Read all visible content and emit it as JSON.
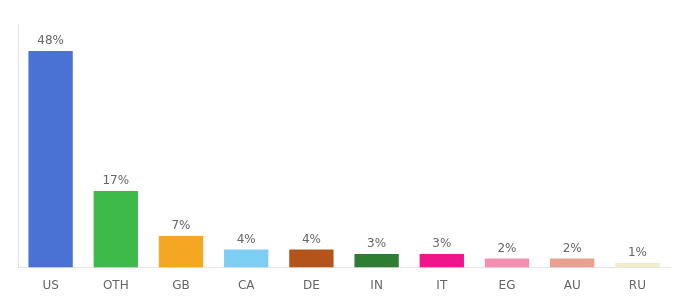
{
  "chart_data": {
    "type": "bar",
    "categories": [
      "US",
      "OTH",
      "GB",
      "CA",
      "DE",
      "IN",
      "IT",
      "EG",
      "AU",
      "RU"
    ],
    "values": [
      48,
      17,
      7,
      4,
      4,
      3,
      3,
      2,
      2,
      1
    ],
    "value_labels": [
      "48%",
      "17%",
      "7%",
      "4%",
      "4%",
      "3%",
      "3%",
      "2%",
      "2%",
      "1%"
    ],
    "colors": [
      "#4a72d4",
      "#3dba4a",
      "#f5a623",
      "#7ecef4",
      "#b5541a",
      "#2e7d32",
      "#f0158a",
      "#f48fb1",
      "#e8a090",
      "#f0eec8"
    ],
    "ylim": [
      0,
      54
    ],
    "data_labels": true,
    "tick_labels": "x",
    "grid": false
  }
}
